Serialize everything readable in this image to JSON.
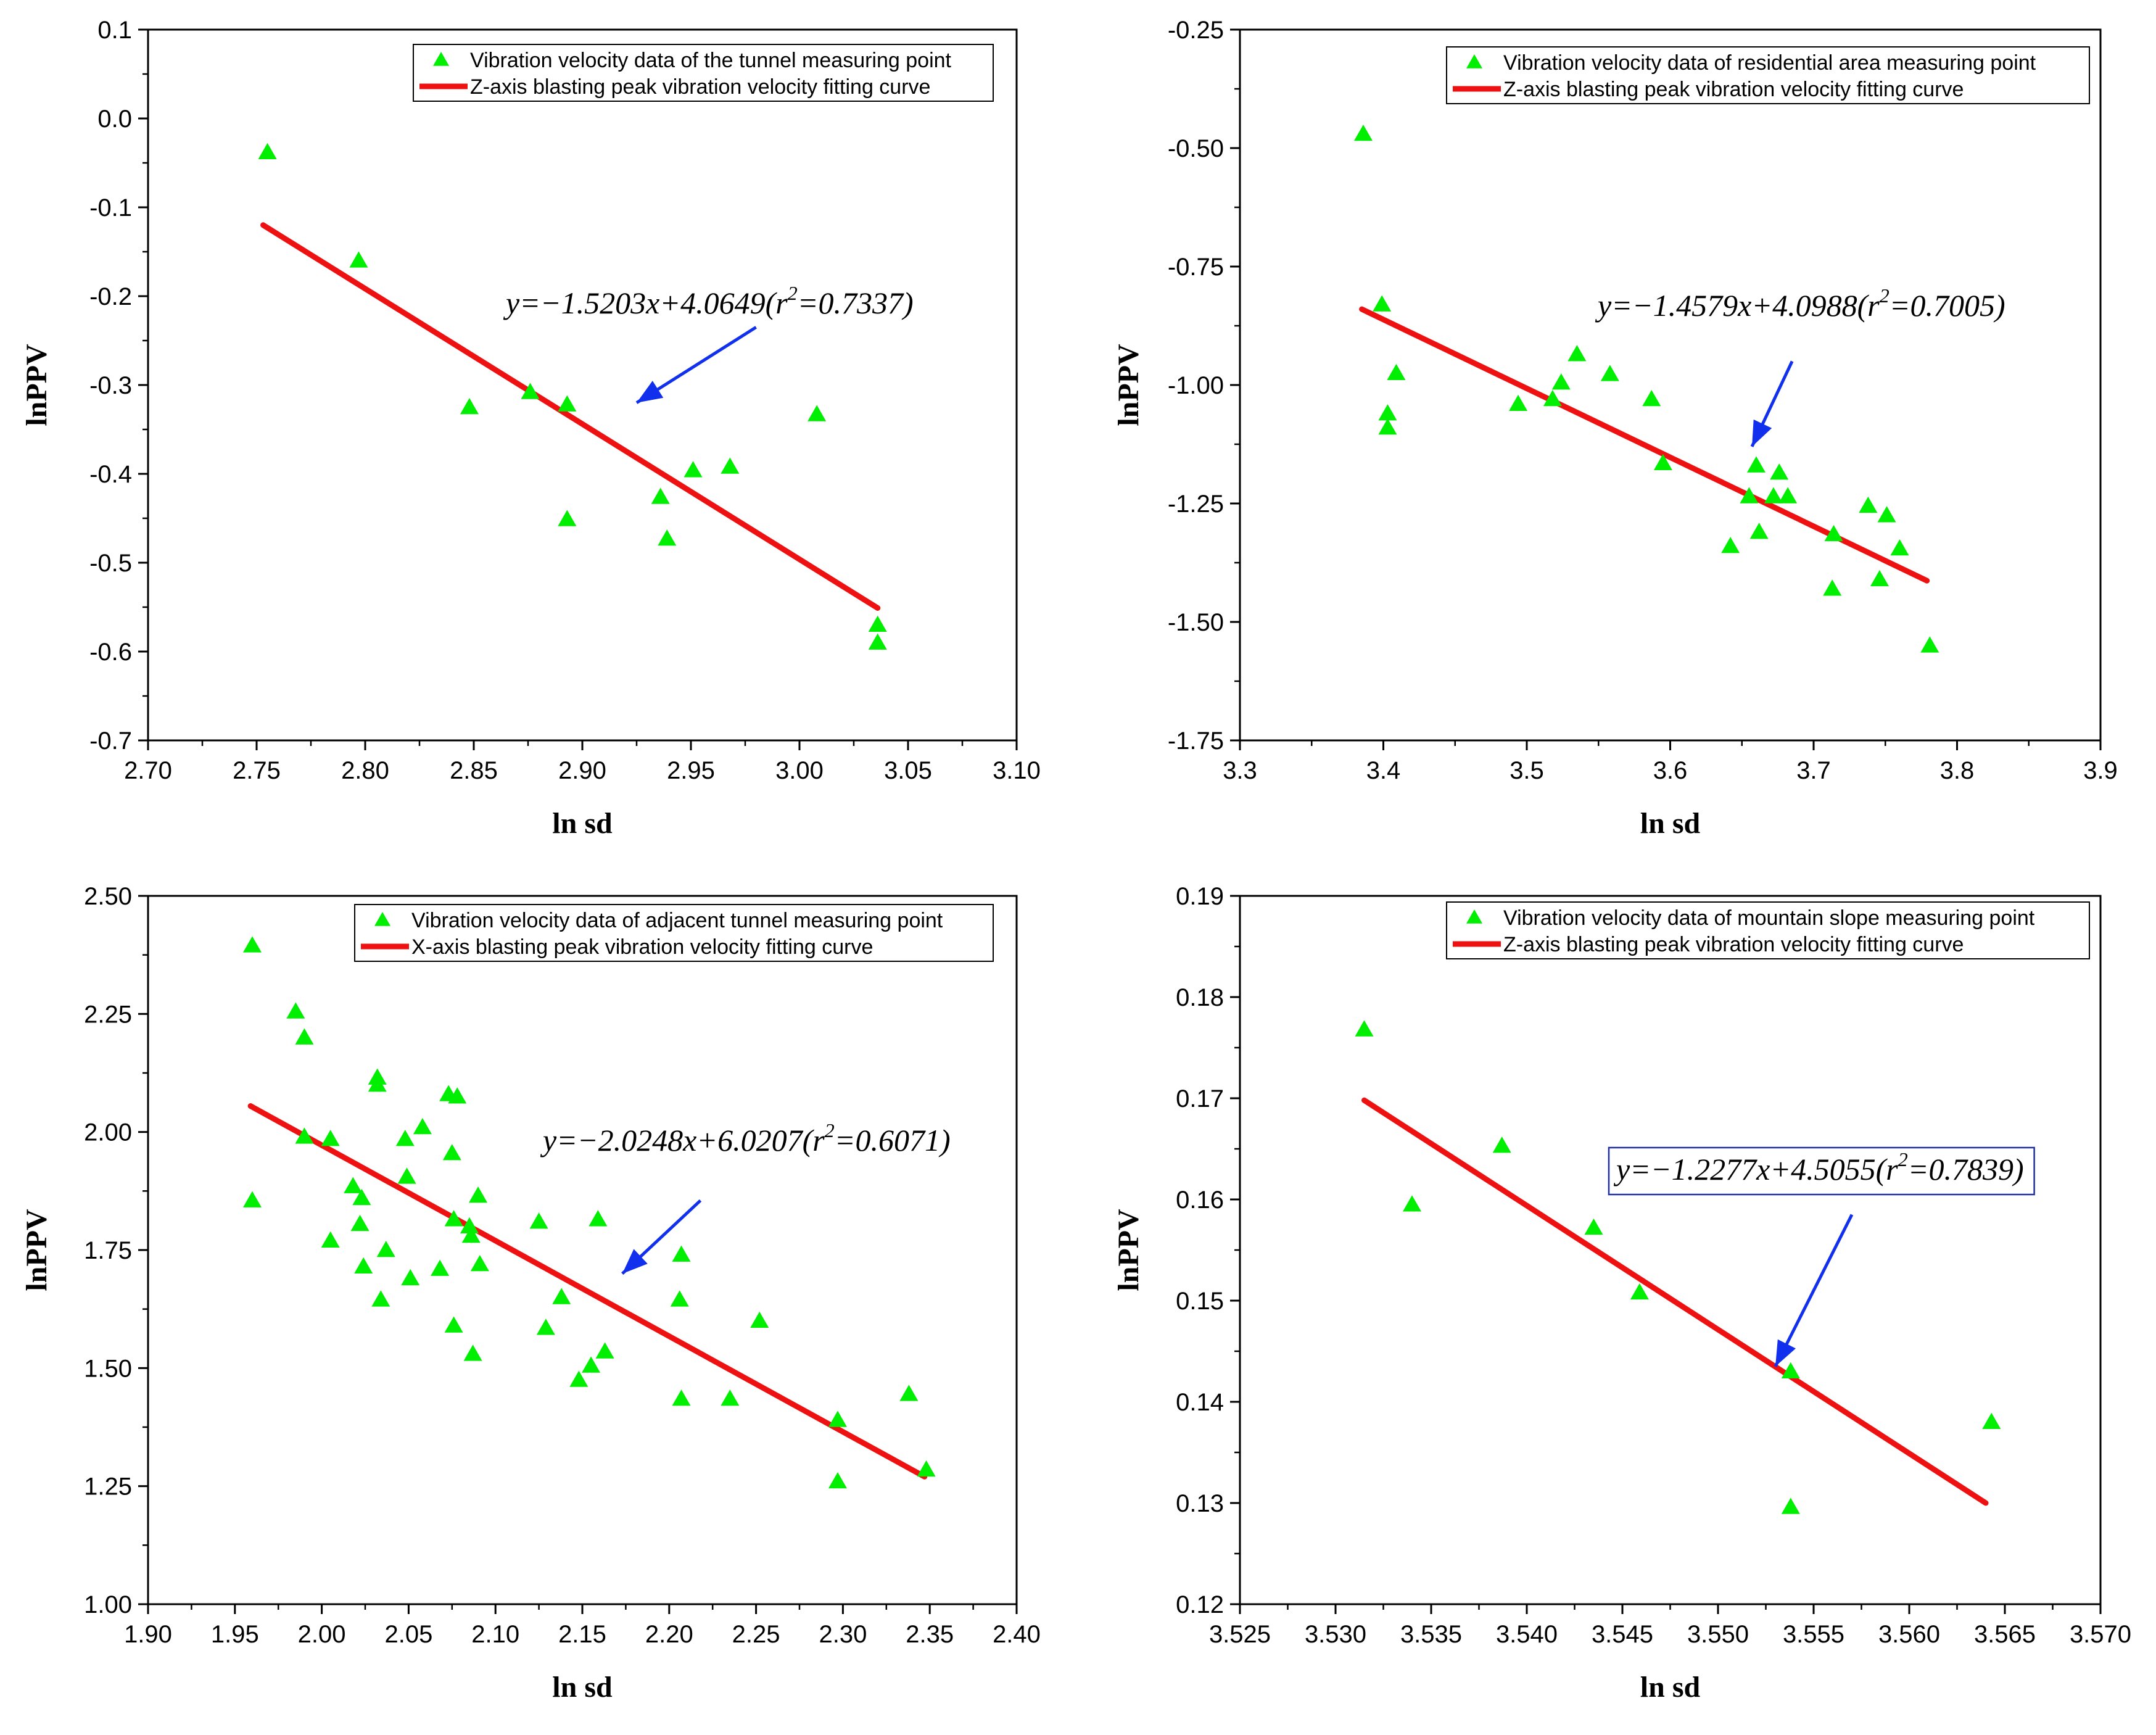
{
  "chart_data": [
    {
      "type": "scatter",
      "panel": "top-left",
      "xlabel": "ln sd",
      "ylabel": "lnPPV",
      "xlim": [
        2.7,
        3.1
      ],
      "ylim": [
        -0.7,
        0.1
      ],
      "xticks": [
        "2.70",
        "2.75",
        "2.80",
        "2.85",
        "2.90",
        "2.95",
        "3.00",
        "3.05",
        "3.10"
      ],
      "yticks": [
        "-0.7",
        "-0.6",
        "-0.5",
        "-0.4",
        "-0.3",
        "-0.2",
        "-0.1",
        "0.0",
        "0.1"
      ],
      "legend": {
        "position": "top-right",
        "scatter_label": "Vibration velocity data of the tunnel measuring point",
        "line_label": "Z-axis blasting peak vibration velocity fitting curve"
      },
      "equation": {
        "prefix": "y=−1.5203x+4.0649(r",
        "sup": "2",
        "suffix": "=0.7337)",
        "boxed": false
      },
      "fit": {
        "x": [
          2.753,
          3.036
        ],
        "y": [
          -0.12,
          -0.551
        ]
      },
      "arrow": {
        "from": [
          2.98,
          -0.235
        ],
        "to": [
          2.925,
          -0.32
        ]
      },
      "points": [
        [
          2.755,
          -0.038
        ],
        [
          2.797,
          -0.16
        ],
        [
          2.848,
          -0.325
        ],
        [
          2.876,
          -0.308
        ],
        [
          2.893,
          -0.322
        ],
        [
          2.893,
          -0.451
        ],
        [
          2.936,
          -0.426
        ],
        [
          2.939,
          -0.473
        ],
        [
          2.951,
          -0.396
        ],
        [
          2.968,
          -0.392
        ],
        [
          3.008,
          -0.333
        ],
        [
          3.036,
          -0.57
        ],
        [
          3.036,
          -0.59
        ]
      ]
    },
    {
      "type": "scatter",
      "panel": "top-right",
      "xlabel": "ln sd",
      "ylabel": "lnPPV",
      "xlim": [
        3.3,
        3.9
      ],
      "ylim": [
        -1.75,
        -0.25
      ],
      "xticks": [
        "3.3",
        "3.4",
        "3.5",
        "3.6",
        "3.7",
        "3.8",
        "3.9"
      ],
      "yticks": [
        "-1.75",
        "-1.50",
        "-1.25",
        "-1.00",
        "-0.75",
        "-0.50",
        "-0.25"
      ],
      "legend": {
        "position": "top-right",
        "scatter_label": "Vibration velocity data of  residential area measuring point",
        "line_label": "Z-axis blasting peak vibration velocity fitting curve"
      },
      "equation": {
        "prefix": "y=−1.4579x+4.0988(r",
        "sup": "2",
        "suffix": "=0.7005)",
        "boxed": false
      },
      "fit": {
        "x": [
          3.385,
          3.779
        ],
        "y": [
          -0.84,
          -1.413
        ]
      },
      "arrow": {
        "from": [
          3.685,
          -0.95
        ],
        "to": [
          3.657,
          -1.13
        ]
      },
      "points": [
        [
          3.386,
          -0.47
        ],
        [
          3.399,
          -0.83
        ],
        [
          3.403,
          -1.06
        ],
        [
          3.403,
          -1.09
        ],
        [
          3.409,
          -0.975
        ],
        [
          3.494,
          -1.04
        ],
        [
          3.518,
          -1.03
        ],
        [
          3.524,
          -0.995
        ],
        [
          3.535,
          -0.935
        ],
        [
          3.558,
          -0.977
        ],
        [
          3.587,
          -1.03
        ],
        [
          3.595,
          -1.165
        ],
        [
          3.642,
          -1.34
        ],
        [
          3.655,
          -1.235
        ],
        [
          3.66,
          -1.17
        ],
        [
          3.662,
          -1.31
        ],
        [
          3.672,
          -1.235
        ],
        [
          3.676,
          -1.185
        ],
        [
          3.682,
          -1.235
        ],
        [
          3.713,
          -1.43
        ],
        [
          3.714,
          -1.315
        ],
        [
          3.738,
          -1.255
        ],
        [
          3.746,
          -1.41
        ],
        [
          3.751,
          -1.275
        ],
        [
          3.76,
          -1.345
        ],
        [
          3.781,
          -1.55
        ]
      ]
    },
    {
      "type": "scatter",
      "panel": "bottom-left",
      "xlabel": "ln sd",
      "ylabel": "lnPPV",
      "xlim": [
        1.9,
        2.4
      ],
      "ylim": [
        1.0,
        2.5
      ],
      "xticks": [
        "1.90",
        "1.95",
        "2.00",
        "2.05",
        "2.10",
        "2.15",
        "2.20",
        "2.25",
        "2.30",
        "2.35",
        "2.40"
      ],
      "yticks": [
        "1.00",
        "1.25",
        "1.50",
        "1.75",
        "2.00",
        "2.25",
        "2.50"
      ],
      "legend": {
        "position": "top-right",
        "scatter_label": "Vibration velocity data of  adjacent tunnel measuring point",
        "line_label": "X-axis blasting peak vibration velocity fitting curve"
      },
      "equation": {
        "prefix": "y=−2.0248x+6.0207(r",
        "sup": "2",
        "suffix": "=0.6071)",
        "boxed": false
      },
      "fit": {
        "x": [
          1.959,
          2.347
        ],
        "y": [
          2.055,
          1.27
        ]
      },
      "arrow": {
        "from": [
          2.218,
          1.855
        ],
        "to": [
          2.173,
          1.7
        ]
      },
      "points": [
        [
          1.96,
          2.395
        ],
        [
          1.96,
          1.855
        ],
        [
          1.985,
          2.255
        ],
        [
          1.99,
          2.2
        ],
        [
          1.99,
          1.99
        ],
        [
          2.005,
          1.985
        ],
        [
          2.005,
          1.77
        ],
        [
          2.018,
          1.885
        ],
        [
          2.022,
          1.805
        ],
        [
          2.023,
          1.86
        ],
        [
          2.024,
          1.715
        ],
        [
          2.032,
          2.115
        ],
        [
          2.032,
          2.1
        ],
        [
          2.034,
          1.645
        ],
        [
          2.037,
          1.75
        ],
        [
          2.048,
          1.985
        ],
        [
          2.049,
          1.905
        ],
        [
          2.051,
          1.69
        ],
        [
          2.058,
          2.01
        ],
        [
          2.068,
          1.71
        ],
        [
          2.073,
          2.08
        ],
        [
          2.075,
          1.955
        ],
        [
          2.076,
          1.815
        ],
        [
          2.076,
          1.59
        ],
        [
          2.078,
          2.075
        ],
        [
          2.085,
          1.8
        ],
        [
          2.086,
          1.78
        ],
        [
          2.087,
          1.53
        ],
        [
          2.09,
          1.865
        ],
        [
          2.091,
          1.72
        ],
        [
          2.125,
          1.81
        ],
        [
          2.129,
          1.585
        ],
        [
          2.138,
          1.65
        ],
        [
          2.148,
          1.475
        ],
        [
          2.155,
          1.505
        ],
        [
          2.159,
          1.815
        ],
        [
          2.163,
          1.535
        ],
        [
          2.206,
          1.645
        ],
        [
          2.207,
          1.74
        ],
        [
          2.207,
          1.435
        ],
        [
          2.235,
          1.435
        ],
        [
          2.252,
          1.6
        ],
        [
          2.297,
          1.39
        ],
        [
          2.297,
          1.26
        ],
        [
          2.338,
          1.445
        ],
        [
          2.348,
          1.285
        ]
      ]
    },
    {
      "type": "scatter",
      "panel": "bottom-right",
      "xlabel": "ln sd",
      "ylabel": "lnPPV",
      "xlim": [
        3.525,
        3.57
      ],
      "ylim": [
        0.12,
        0.19
      ],
      "xticks": [
        "3.525",
        "3.530",
        "3.535",
        "3.540",
        "3.545",
        "3.550",
        "3.555",
        "3.560",
        "3.565",
        "3.570"
      ],
      "yticks": [
        "0.12",
        "0.13",
        "0.14",
        "0.15",
        "0.16",
        "0.17",
        "0.18",
        "0.19"
      ],
      "legend": {
        "position": "top-right",
        "scatter_label": "Vibration velocity data of  mountain slope measuring point",
        "line_label": "Z-axis blasting peak vibration velocity fitting curve"
      },
      "equation": {
        "prefix": "y=−1.2277x+4.5055(r",
        "sup": "2",
        "suffix": "=0.7839)",
        "boxed": true
      },
      "fit": {
        "x": [
          3.5315,
          3.564
        ],
        "y": [
          0.1698,
          0.13
        ]
      },
      "arrow": {
        "from": [
          3.557,
          0.1585
        ],
        "to": [
          3.553,
          0.1435
        ]
      },
      "points": [
        [
          3.5315,
          0.1768
        ],
        [
          3.534,
          0.1595
        ],
        [
          3.5387,
          0.1653
        ],
        [
          3.5435,
          0.1572
        ],
        [
          3.5459,
          0.1508
        ],
        [
          3.5538,
          0.143
        ],
        [
          3.5538,
          0.1296
        ],
        [
          3.5643,
          0.138
        ]
      ]
    }
  ]
}
